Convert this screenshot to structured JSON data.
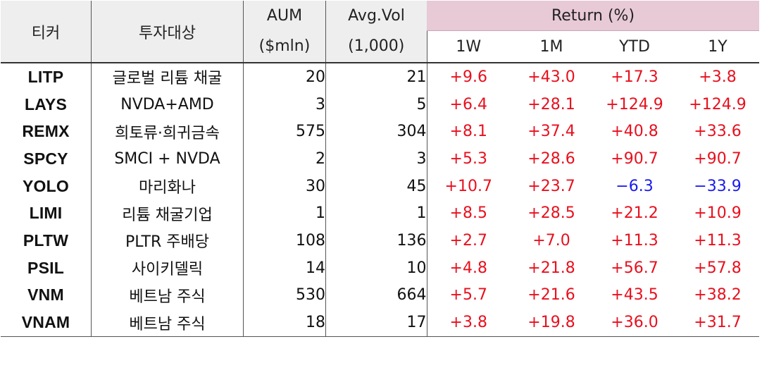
{
  "table": {
    "header": {
      "ticker": "티커",
      "underlying": "투자대상",
      "aum_line1": "AUM",
      "aum_line2": "($mln)",
      "vol_line1": "Avg.Vol",
      "vol_line2": "(1,000)",
      "return_group": "Return (%)",
      "periods": [
        "1W",
        "1M",
        "YTD",
        "1Y"
      ]
    },
    "rows": [
      {
        "ticker": "LITP",
        "underlying": "글로벌 리튬 채굴",
        "aum": "20",
        "vol": "21",
        "r1w": "+9.6",
        "r1m": "+43.0",
        "ytd": "+17.3",
        "r1y": "+3.8"
      },
      {
        "ticker": "LAYS",
        "underlying": "NVDA+AMD",
        "aum": "3",
        "vol": "5",
        "r1w": "+6.4",
        "r1m": "+28.1",
        "ytd": "+124.9",
        "r1y": "+124.9"
      },
      {
        "ticker": "REMX",
        "underlying": "희토류·희귀금속",
        "aum": "575",
        "vol": "304",
        "r1w": "+8.1",
        "r1m": "+37.4",
        "ytd": "+40.8",
        "r1y": "+33.6"
      },
      {
        "ticker": "SPCY",
        "underlying": "SMCI + NVDA",
        "aum": "2",
        "vol": "3",
        "r1w": "+5.3",
        "r1m": "+28.6",
        "ytd": "+90.7",
        "r1y": "+90.7"
      },
      {
        "ticker": "YOLO",
        "underlying": "마리화나",
        "aum": "30",
        "vol": "45",
        "r1w": "+10.7",
        "r1m": "+23.7",
        "ytd": "−6.3",
        "r1y": "−33.9"
      },
      {
        "ticker": "LIMI",
        "underlying": "리튬 채굴기업",
        "aum": "1",
        "vol": "1",
        "r1w": "+8.5",
        "r1m": "+28.5",
        "ytd": "+21.2",
        "r1y": "+10.9"
      },
      {
        "ticker": "PLTW",
        "underlying": "PLTR 주배당",
        "aum": "108",
        "vol": "136",
        "r1w": "+2.7",
        "r1m": "+7.0",
        "ytd": "+11.3",
        "r1y": "+11.3"
      },
      {
        "ticker": "PSIL",
        "underlying": "사이키델릭",
        "aum": "14",
        "vol": "10",
        "r1w": "+4.8",
        "r1m": "+21.8",
        "ytd": "+56.7",
        "r1y": "+57.8"
      },
      {
        "ticker": "VNM",
        "underlying": "베트남 주식",
        "aum": "530",
        "vol": "664",
        "r1w": "+5.7",
        "r1m": "+21.6",
        "ytd": "+43.5",
        "r1y": "+38.2"
      },
      {
        "ticker": "VNAM",
        "underlying": "베트남 주식",
        "aum": "18",
        "vol": "17",
        "r1w": "+3.8",
        "r1m": "+19.8",
        "ytd": "+36.0",
        "r1y": "+31.7"
      }
    ],
    "colors": {
      "positive": "#e8101e",
      "negative": "#1a1aee",
      "return_header_bg": "#e8c9d6",
      "header_bg": "#eeeeee"
    }
  }
}
